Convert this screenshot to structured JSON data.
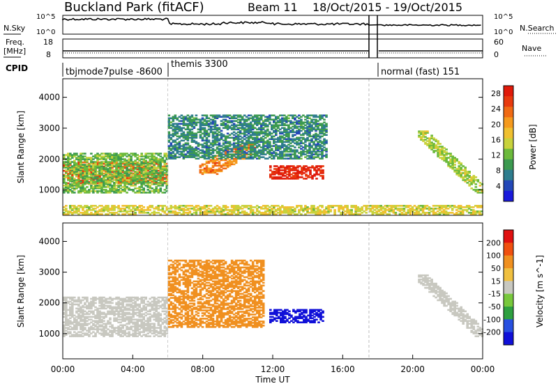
{
  "header": {
    "station": "Buckland Park (fitACF)",
    "beam": "Beam 11",
    "dates": "18/Oct/2015 - 19/Oct/2015"
  },
  "noise_panel": {
    "left_label": "N.Sky",
    "left_ticks": [
      "10^5",
      "10^0"
    ],
    "right_label": "N.Search",
    "right_ticks": [
      "10^5",
      "10^0"
    ]
  },
  "freq_panel": {
    "left_label": "Freq.",
    "left_unit": "[MHz]",
    "left_ticks": [
      "18",
      "8"
    ],
    "right_label": "Nave",
    "right_ticks": [
      "60",
      "0"
    ]
  },
  "cpid": {
    "label": "CPID",
    "modes": [
      {
        "name": "tbjmode7pulse -8600",
        "start_hour": 0
      },
      {
        "name": "themis 3300",
        "start_hour": 6
      },
      {
        "name": "normal (fast) 151",
        "start_hour": 18
      }
    ]
  },
  "chart_data": [
    {
      "type": "heatmap",
      "title": "Power",
      "ylabel": "Slant Range [km]",
      "xlabel": "Time UT",
      "x_ticks": [
        "00:00",
        "04:00",
        "08:00",
        "12:00",
        "16:00",
        "20:00",
        "00:00"
      ],
      "xlim_hours": [
        0,
        24
      ],
      "y_ticks": [
        1000,
        2000,
        3000,
        4000
      ],
      "ylim": [
        180,
        4600
      ],
      "colorbar": {
        "label": "Power [dB]",
        "ticks": [
          4,
          8,
          12,
          16,
          20,
          24,
          28
        ],
        "range": [
          0,
          30
        ],
        "colors": [
          "#1a1adc",
          "#2448b8",
          "#2e7d8e",
          "#3c9a50",
          "#6cba3c",
          "#c8d23c",
          "#f0c030",
          "#f59a1e",
          "#f06a14",
          "#e83a0e",
          "#e01a0a"
        ]
      },
      "regions": [
        {
          "name": "main F-region echo",
          "t0": 0,
          "t1": 6,
          "r0": 1200,
          "r1": 1900,
          "value": 24
        },
        {
          "name": "broad echo band",
          "t0": 0,
          "t1": 6,
          "r0": 900,
          "r1": 2200,
          "value": 12
        },
        {
          "name": "rising echo",
          "t0": 7.8,
          "t1": 11.0,
          "r0": 1500,
          "r1": 2500,
          "value": 22
        },
        {
          "name": "strong echo block",
          "t0": 11.8,
          "t1": 14.9,
          "r0": 1350,
          "r1": 1800,
          "value": 28
        },
        {
          "name": "scattered high range",
          "t0": 6,
          "t1": 15,
          "r0": 2000,
          "r1": 3400,
          "value": 8
        },
        {
          "name": "descending streak",
          "t0": 20.3,
          "t1": 24,
          "r0": 900,
          "r1": 2900,
          "value": 14
        },
        {
          "name": "near-range clutter",
          "t0": 0,
          "t1": 24,
          "r0": 200,
          "r1": 500,
          "value": 16
        }
      ],
      "gap_hours": [
        17.5,
        18.0
      ]
    },
    {
      "type": "heatmap",
      "title": "Velocity",
      "ylabel": "Slant Range [km]",
      "xlabel": "Time UT",
      "x_ticks": [
        "00:00",
        "04:00",
        "08:00",
        "12:00",
        "16:00",
        "20:00",
        "00:00"
      ],
      "xlim_hours": [
        0,
        24
      ],
      "y_ticks": [
        1000,
        2000,
        3000,
        4000
      ],
      "ylim": [
        180,
        4600
      ],
      "colorbar": {
        "label": "Velocity [m s^-1]",
        "ticks": [
          200,
          100,
          50,
          15,
          -15,
          -50,
          -100,
          -200
        ],
        "colors": [
          "#1010d8",
          "#2850e0",
          "#2ea040",
          "#78c83c",
          "#c8c8c0",
          "#f0c040",
          "#f09020",
          "#f05010",
          "#e01010"
        ]
      },
      "regions": [
        {
          "name": "ground scatter band",
          "t0": 0,
          "t1": 6,
          "r0": 900,
          "r1": 2200,
          "value": 0
        },
        {
          "name": "positive velocity block",
          "t0": 11.8,
          "t1": 14.9,
          "r0": 1350,
          "r1": 1800,
          "value": 200
        },
        {
          "name": "mixed scatter",
          "t0": 6,
          "t1": 11.5,
          "r0": 1200,
          "r1": 3400,
          "value": -50
        },
        {
          "name": "descending streak",
          "t0": 20.3,
          "t1": 24,
          "r0": 900,
          "r1": 2900,
          "value": 0
        }
      ],
      "gap_hours": [
        17.5,
        18.0
      ]
    }
  ],
  "axis": {
    "xlabel": "Time UT"
  }
}
